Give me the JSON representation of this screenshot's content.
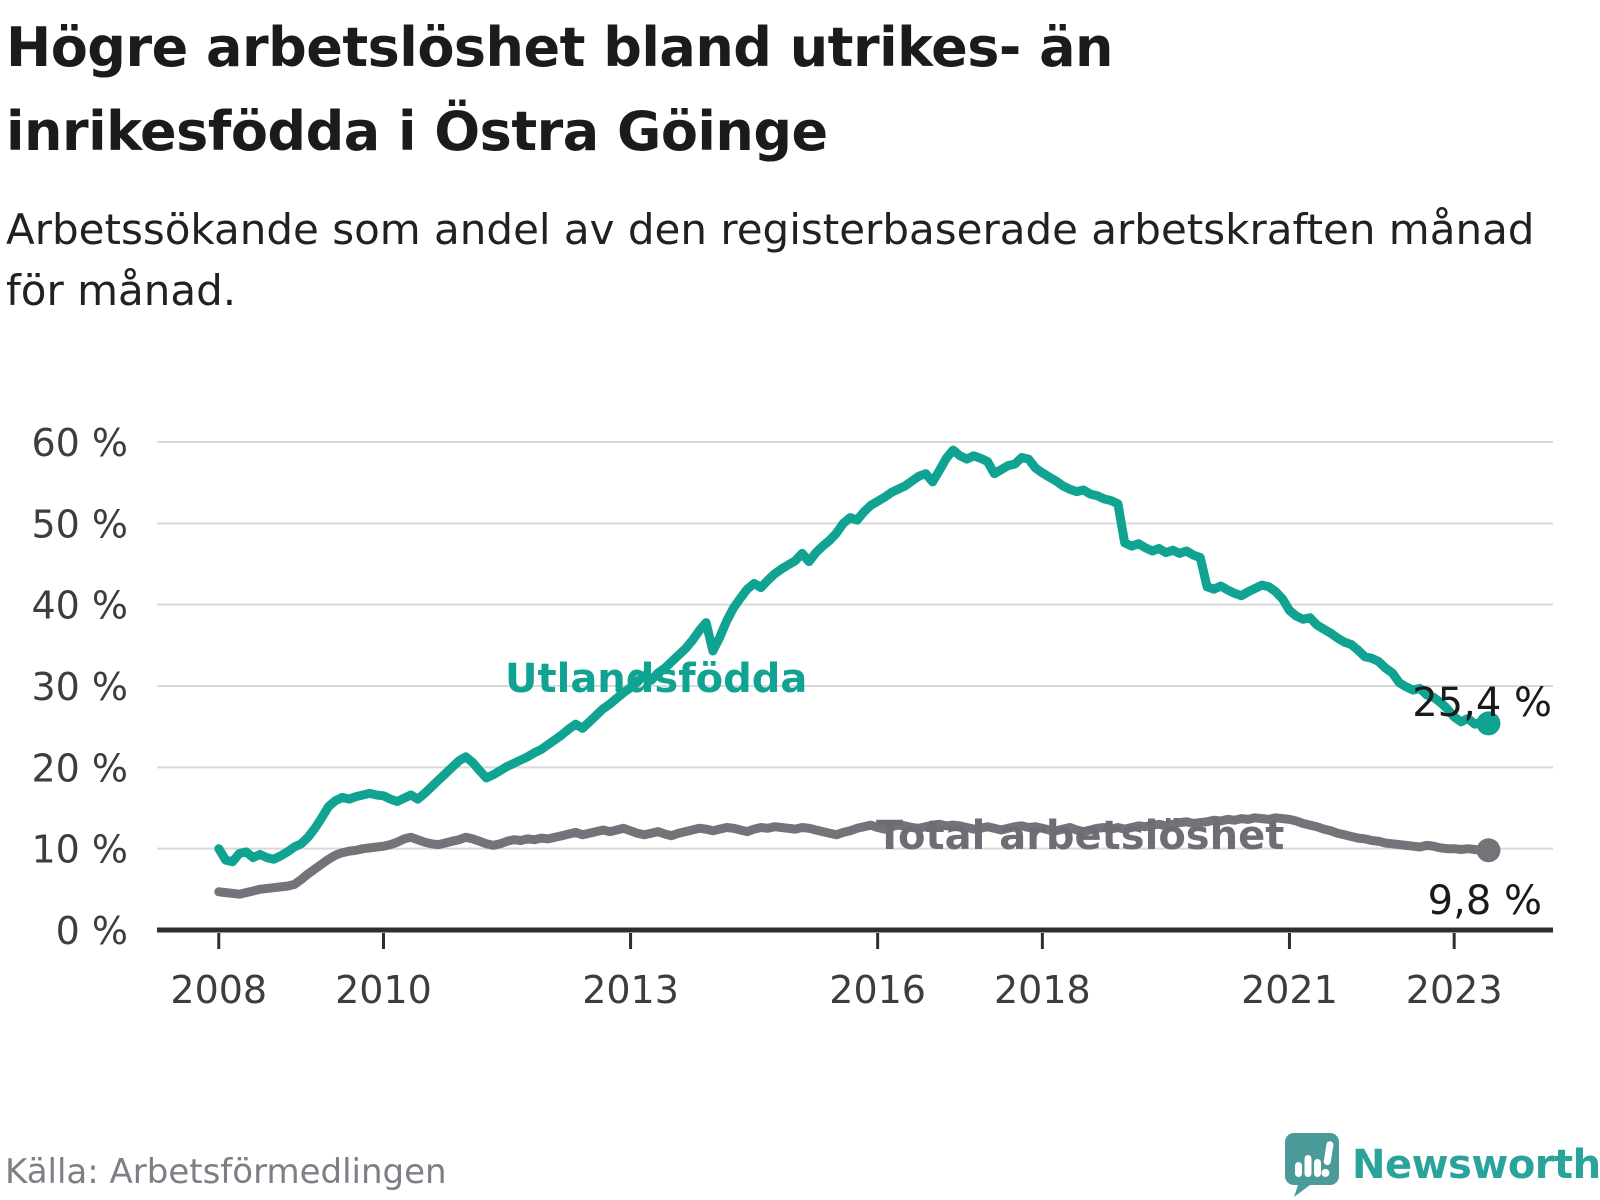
{
  "header": {
    "title": "Högre arbetslöshet bland utrikes- än inrikesfödda i Östra Göinge",
    "subtitle": "Arbetssökande som andel av den registerbaserade arbetskraften månad för månad."
  },
  "chart_data": {
    "type": "line",
    "title": "Högre arbetslöshet bland utrikes- än inrikesfödda i Östra Göinge",
    "subtitle": "Arbetssökande som andel av den registerbaserade arbetskraften månad för månad.",
    "x_start": 2008.0,
    "x_frequency": "monthly",
    "x_ticks": [
      2008,
      2010,
      2013,
      2016,
      2018,
      2021,
      2023
    ],
    "y_ticks": [
      0,
      10,
      20,
      30,
      40,
      50,
      60
    ],
    "y_tick_suffix": " %",
    "ylim": [
      0,
      62
    ],
    "grid": "horizontal",
    "grid_color": "#d9d9d9",
    "axis_color": "#2e2e2e",
    "legend_position": "inline-labels",
    "series": [
      {
        "name": "Utlandsfödda",
        "color": "#11a392",
        "label_color": "#11a392",
        "end_label": "25,4 %",
        "end_value": 25.4,
        "values": [
          10.0,
          8.6,
          8.4,
          9.4,
          9.6,
          8.9,
          9.3,
          8.9,
          8.7,
          9.1,
          9.6,
          10.2,
          10.6,
          11.4,
          12.5,
          13.8,
          15.2,
          15.9,
          16.3,
          16.1,
          16.4,
          16.6,
          16.8,
          16.6,
          16.5,
          16.1,
          15.8,
          16.2,
          16.6,
          16.1,
          16.8,
          17.6,
          18.4,
          19.2,
          20.0,
          20.8,
          21.3,
          20.6,
          19.6,
          18.7,
          19.1,
          19.6,
          20.1,
          20.5,
          20.9,
          21.3,
          21.8,
          22.2,
          22.8,
          23.4,
          24.0,
          24.7,
          25.3,
          24.8,
          25.6,
          26.4,
          27.2,
          27.8,
          28.5,
          29.2,
          29.8,
          30.5,
          31.3,
          30.7,
          31.6,
          32.2,
          33.0,
          33.8,
          34.6,
          35.6,
          36.8,
          37.8,
          34.3,
          36.0,
          38.0,
          39.6,
          40.8,
          41.9,
          42.6,
          42.1,
          43.0,
          43.8,
          44.4,
          44.9,
          45.4,
          46.3,
          45.3,
          46.4,
          47.2,
          47.9,
          48.8,
          50.0,
          50.7,
          50.4,
          51.4,
          52.2,
          52.7,
          53.2,
          53.8,
          54.2,
          54.6,
          55.2,
          55.8,
          56.1,
          55.1,
          56.5,
          58.0,
          59.0,
          58.3,
          57.9,
          58.3,
          58.0,
          57.6,
          56.1,
          56.6,
          57.1,
          57.3,
          58.1,
          57.9,
          56.8,
          56.2,
          55.7,
          55.2,
          54.6,
          54.2,
          53.9,
          54.1,
          53.6,
          53.4,
          53.0,
          52.8,
          52.4,
          47.6,
          47.2,
          47.5,
          47.0,
          46.6,
          46.9,
          46.4,
          46.7,
          46.3,
          46.6,
          46.1,
          45.8,
          42.2,
          41.9,
          42.3,
          41.8,
          41.4,
          41.1,
          41.6,
          42.0,
          42.4,
          42.2,
          41.6,
          40.7,
          39.3,
          38.6,
          38.2,
          38.4,
          37.5,
          37.0,
          36.5,
          35.9,
          35.4,
          35.1,
          34.4,
          33.6,
          33.4,
          33.0,
          32.2,
          31.6,
          30.4,
          29.9,
          29.5,
          29.7,
          28.9,
          28.6,
          28.0,
          27.2,
          26.2,
          25.6,
          26.0,
          25.3,
          25.6,
          25.4
        ]
      },
      {
        "name": "Total arbetslöshet",
        "color": "#757279",
        "label_color": "#6f6c74",
        "end_label": "9,8 %",
        "end_value": 9.8,
        "values": [
          4.7,
          4.6,
          4.5,
          4.4,
          4.6,
          4.8,
          5.0,
          5.1,
          5.2,
          5.3,
          5.4,
          5.6,
          6.2,
          6.9,
          7.5,
          8.1,
          8.7,
          9.2,
          9.5,
          9.7,
          9.8,
          10.0,
          10.1,
          10.2,
          10.3,
          10.5,
          10.8,
          11.2,
          11.4,
          11.1,
          10.8,
          10.6,
          10.5,
          10.7,
          10.9,
          11.1,
          11.4,
          11.2,
          10.9,
          10.6,
          10.4,
          10.6,
          10.9,
          11.1,
          11.0,
          11.2,
          11.1,
          11.3,
          11.2,
          11.4,
          11.6,
          11.8,
          12.0,
          11.7,
          11.9,
          12.1,
          12.3,
          12.1,
          12.3,
          12.5,
          12.2,
          11.9,
          11.7,
          11.9,
          12.1,
          11.8,
          11.6,
          11.9,
          12.1,
          12.3,
          12.5,
          12.4,
          12.2,
          12.4,
          12.6,
          12.5,
          12.3,
          12.1,
          12.4,
          12.6,
          12.5,
          12.7,
          12.6,
          12.5,
          12.4,
          12.6,
          12.5,
          12.3,
          12.1,
          11.9,
          11.7,
          12.0,
          12.2,
          12.5,
          12.7,
          12.9,
          12.6,
          12.4,
          12.7,
          12.9,
          12.8,
          12.6,
          12.5,
          12.7,
          12.9,
          13.0,
          12.8,
          12.9,
          12.8,
          12.6,
          12.4,
          12.5,
          12.7,
          12.5,
          12.3,
          12.5,
          12.7,
          12.8,
          12.6,
          12.7,
          12.5,
          12.3,
          12.2,
          12.4,
          12.6,
          12.3,
          12.1,
          12.3,
          12.5,
          12.6,
          12.4,
          12.6,
          12.4,
          12.6,
          12.8,
          12.7,
          12.9,
          13.0,
          12.8,
          13.0,
          13.2,
          13.3,
          13.1,
          13.2,
          13.3,
          13.5,
          13.4,
          13.6,
          13.5,
          13.7,
          13.6,
          13.8,
          13.7,
          13.6,
          13.8,
          13.7,
          13.6,
          13.4,
          13.1,
          12.9,
          12.7,
          12.4,
          12.2,
          11.9,
          11.7,
          11.5,
          11.3,
          11.2,
          11.0,
          10.9,
          10.7,
          10.6,
          10.5,
          10.4,
          10.3,
          10.2,
          10.4,
          10.3,
          10.1,
          10.0,
          10.0,
          9.9,
          10.0,
          9.9,
          9.8,
          9.8
        ]
      }
    ]
  },
  "footer": {
    "source": "Källa: Arbetsförmedlingen"
  },
  "branding": {
    "name": "Newsworthy",
    "bubble_color": "#4a9a99",
    "text_color": "#2aa49b"
  }
}
